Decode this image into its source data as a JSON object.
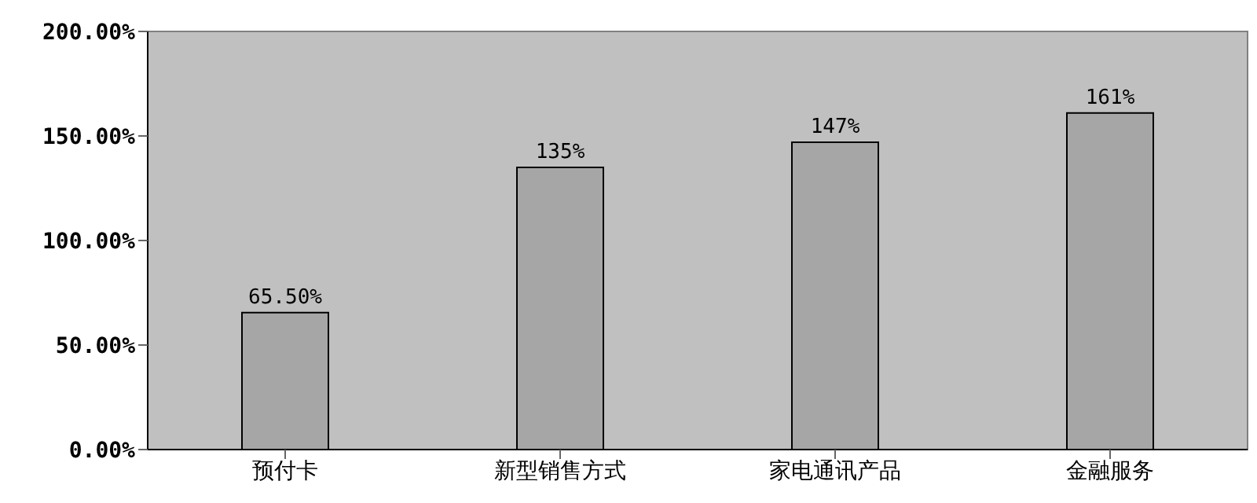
{
  "chart_data": {
    "type": "bar",
    "categories": [
      "预付卡",
      "新型销售方式",
      "家电通讯产品",
      "金融服务"
    ],
    "values": [
      65.5,
      135,
      147,
      161
    ],
    "yticks": [
      {
        "value": 0,
        "label": "0.00%"
      },
      {
        "value": 50,
        "label": "50.00%"
      },
      {
        "value": 100,
        "label": "100.00%"
      },
      {
        "value": 150,
        "label": "150.00%"
      },
      {
        "value": 200,
        "label": "200.00%"
      }
    ],
    "color": "#a6a6a6",
    "value_labels": [
      "65.50%",
      "135%",
      "147%",
      "161%"
    ],
    "ylim": [
      0,
      200
    ]
  }
}
